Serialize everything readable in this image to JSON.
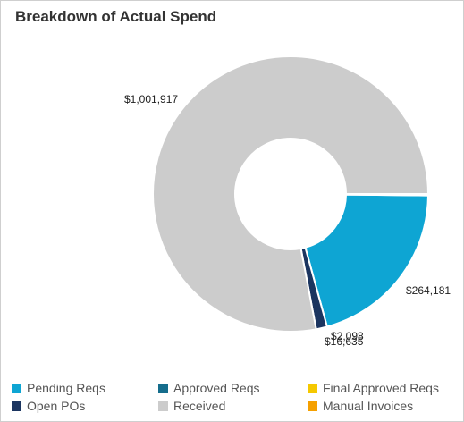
{
  "title": "Breakdown of Actual Spend",
  "colors": {
    "pending": "#0ea5d3",
    "approved": "#156d8c",
    "final": "#f5c800",
    "open": "#1b3560",
    "received": "#cccccc",
    "manual": "#f5a000"
  },
  "chart_data": {
    "type": "pie",
    "donut": true,
    "title": "Breakdown of Actual Spend",
    "series": [
      {
        "name": "Pending Reqs",
        "value": 264181,
        "label": "$264,181",
        "color": "#0ea5d3"
      },
      {
        "name": "Approved Reqs",
        "value": 0,
        "label": "",
        "color": "#156d8c"
      },
      {
        "name": "Final Approved Reqs",
        "value": 0,
        "label": "",
        "color": "#f5c800"
      },
      {
        "name": "Open POs",
        "value": 16635,
        "label": "$16,635",
        "color": "#1b3560"
      },
      {
        "name": "Received",
        "value": 1001917,
        "label": "$1,001,917",
        "color": "#cccccc"
      },
      {
        "name": "Manual Invoices",
        "value": 2098,
        "label": "$2,098",
        "color": "#f5a000"
      }
    ],
    "legend_position": "bottom"
  },
  "legend": [
    {
      "label": "Pending Reqs",
      "color": "#0ea5d3"
    },
    {
      "label": "Approved Reqs",
      "color": "#156d8c"
    },
    {
      "label": "Final Approved Reqs",
      "color": "#f5c800"
    },
    {
      "label": "Open POs",
      "color": "#1b3560"
    },
    {
      "label": "Received",
      "color": "#cccccc"
    },
    {
      "label": "Manual Invoices",
      "color": "#f5a000"
    }
  ]
}
